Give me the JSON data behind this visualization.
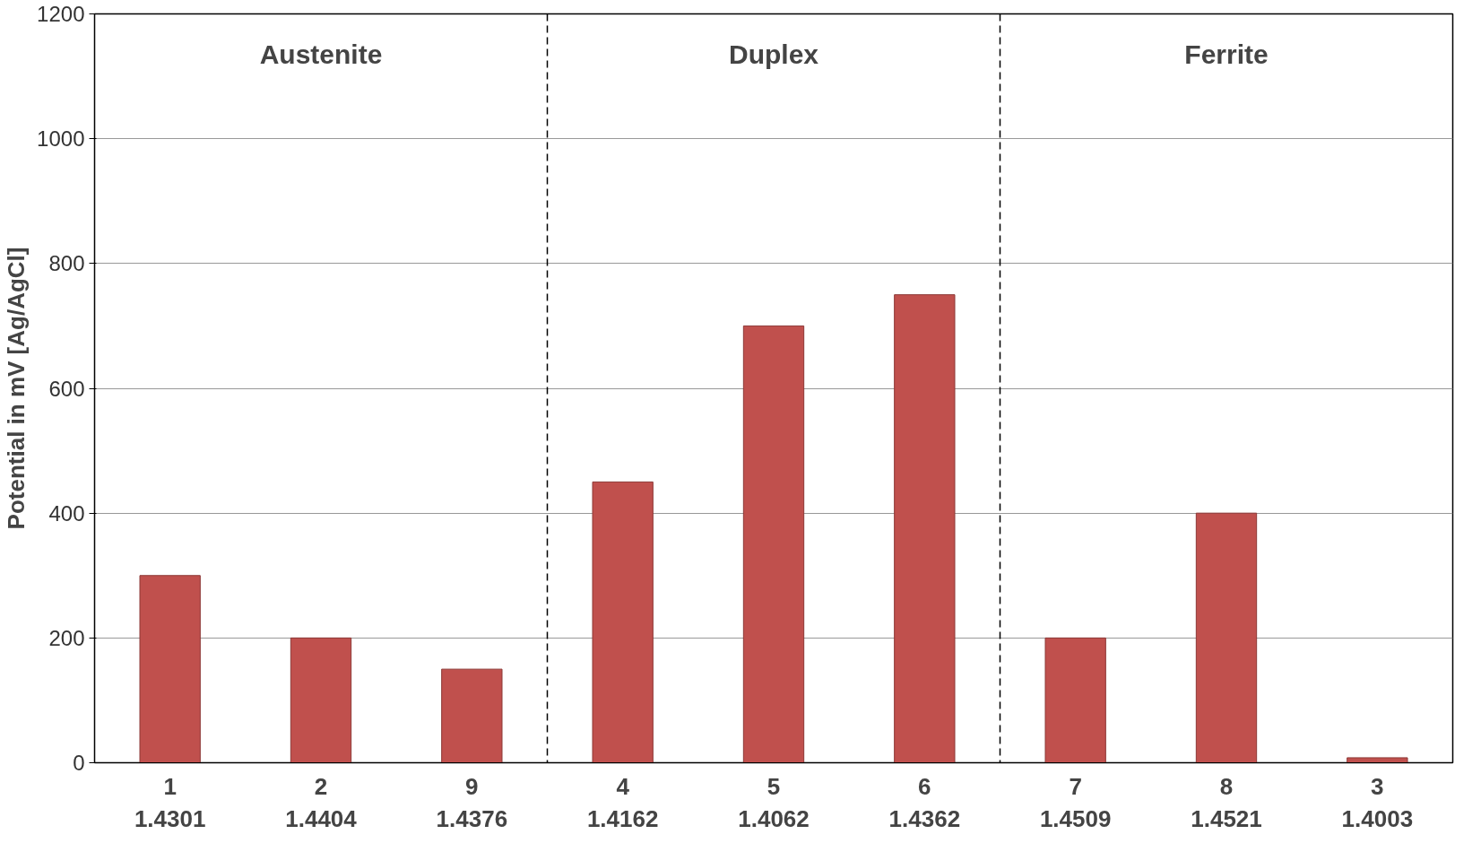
{
  "chart_data": {
    "type": "bar",
    "ylabel": "Potential in mV [Ag/AgCl]",
    "categories": [
      "1\n1.4301",
      "2\n1.4404",
      "9\n1.4376",
      "4\n1.4162",
      "5\n1.4062",
      "6\n1.4362",
      "7\n1.4509",
      "8\n1.4521",
      "3\n1.4003"
    ],
    "values": [
      300,
      200,
      150,
      450,
      700,
      750,
      200,
      400,
      8
    ],
    "color": "#c0504d",
    "ylim": [
      0,
      1200
    ],
    "yticks": [
      0,
      200,
      400,
      600,
      800,
      1000,
      1200
    ],
    "grid": "y",
    "annotations": [
      "Austenite",
      "Duplex",
      "Ferrite"
    ]
  }
}
